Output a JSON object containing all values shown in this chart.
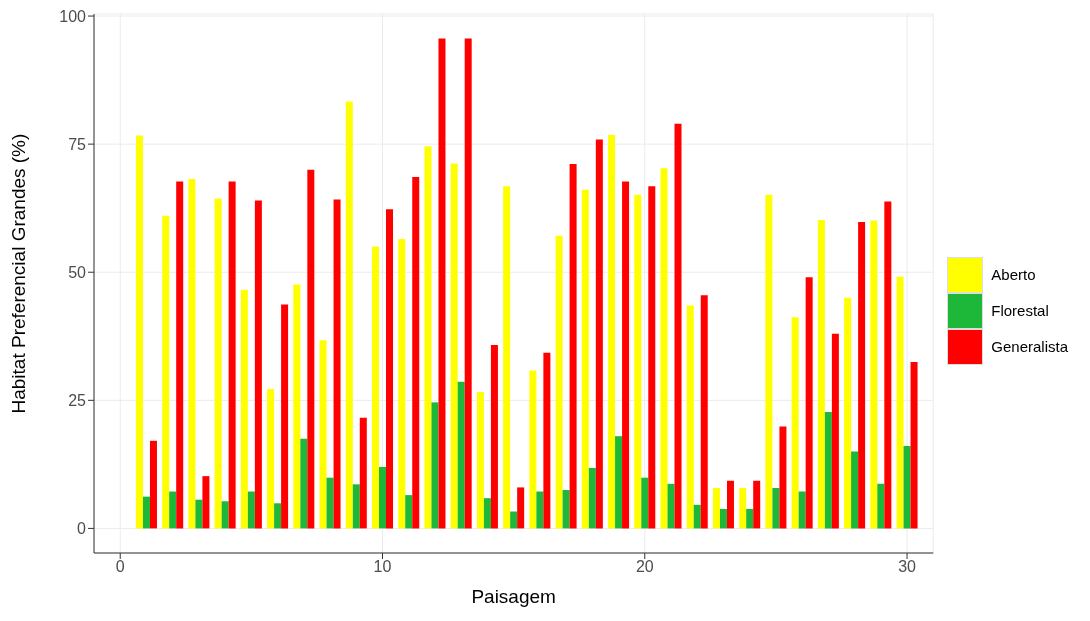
{
  "chart_data": {
    "type": "bar",
    "xlabel": "Paisagem",
    "ylabel": "Habitat Preferencial Grandes (%)",
    "x": [
      1,
      2,
      3,
      4,
      5,
      6,
      7,
      8,
      9,
      10,
      11,
      12,
      13,
      14,
      15,
      16,
      17,
      18,
      19,
      20,
      21,
      22,
      23,
      24,
      25,
      26,
      27,
      28,
      29,
      30
    ],
    "series": [
      {
        "name": "Aberto",
        "color": "#ffff00",
        "values": [
          76.7,
          61,
          68.2,
          64.4,
          46.6,
          27.2,
          47.6,
          36.7,
          83.3,
          55,
          56.5,
          74.6,
          71.2,
          26.6,
          66.8,
          30.8,
          57.1,
          66.1,
          76.8,
          65.1,
          70.3,
          43.5,
          7.9,
          7.9,
          65.1,
          41.2,
          60.2,
          45,
          60.1,
          49.1
        ]
      },
      {
        "name": "Florestal",
        "color": "#1db83a",
        "values": [
          6.2,
          7.2,
          5.6,
          5.3,
          7.2,
          4.9,
          17.5,
          9.9,
          8.6,
          12,
          6.5,
          24.6,
          28.6,
          5.9,
          3.3,
          7.2,
          7.5,
          11.8,
          18,
          9.9,
          8.7,
          4.6,
          3.8,
          3.8,
          7.9,
          7.2,
          22.7,
          15,
          8.7,
          16.1
        ]
      },
      {
        "name": "Generalista",
        "color": "#ff0000",
        "values": [
          17.1,
          67.7,
          10.2,
          67.7,
          64,
          43.7,
          70,
          64.2,
          21.6,
          62.3,
          68.6,
          95.6,
          95.6,
          35.8,
          8,
          34.3,
          71.1,
          75.9,
          67.7,
          66.8,
          79,
          45.5,
          9.3,
          9.3,
          19.9,
          49,
          38,
          59.8,
          63.8,
          32.5
        ]
      }
    ],
    "xlim": [
      -1,
      31
    ],
    "xticks": [
      0,
      10,
      20,
      30
    ],
    "ylim": [
      -4.8,
      100.4
    ],
    "yticks": [
      0,
      25,
      50,
      75,
      100
    ],
    "grid": true,
    "legend": "right"
  }
}
